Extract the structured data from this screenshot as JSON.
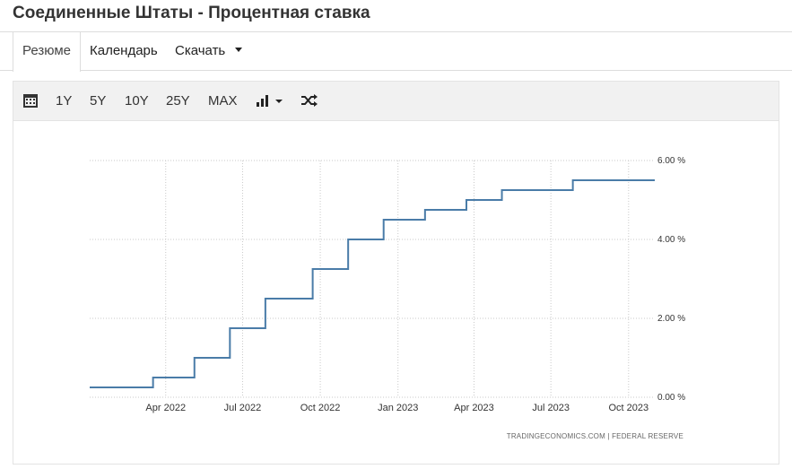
{
  "page": {
    "title": "Соединенные Штаты - Процентная ставка"
  },
  "tabs": [
    {
      "label": "Резюме",
      "active": true
    },
    {
      "label": "Календарь",
      "active": false
    },
    {
      "label": "Скачать",
      "active": false
    }
  ],
  "toolbar": {
    "ranges": [
      "1Y",
      "5Y",
      "10Y",
      "25Y",
      "MAX"
    ],
    "icons": [
      "calendar-icon",
      "bar-chart-icon",
      "shuffle-icon"
    ]
  },
  "chart_data": {
    "type": "line",
    "step": true,
    "color": "#4a7ca8",
    "ylim": [
      0,
      6
    ],
    "y_ticks": [
      0,
      2,
      4,
      6
    ],
    "y_tick_labels": [
      "0.00 %",
      "2.00 %",
      "4.00 %",
      "6.00 %"
    ],
    "x_range": [
      "2022-01-01",
      "2023-11-01"
    ],
    "x_ticks": [
      "2022-04-01",
      "2022-07-01",
      "2022-10-01",
      "2023-01-01",
      "2023-04-01",
      "2023-07-01",
      "2023-10-01"
    ],
    "x_tick_labels": [
      "Apr 2022",
      "Jul 2022",
      "Oct 2022",
      "Jan 2023",
      "Apr 2023",
      "Jul 2023",
      "Oct 2023"
    ],
    "grid": true,
    "series": [
      {
        "dates": [
          "2022-01-01",
          "2022-03-17",
          "2022-05-05",
          "2022-06-16",
          "2022-07-28",
          "2022-09-22",
          "2022-11-03",
          "2022-12-15",
          "2023-02-02",
          "2023-03-23",
          "2023-05-04",
          "2023-07-27",
          "2023-11-01"
        ],
        "values": [
          0.25,
          0.5,
          1.0,
          1.75,
          2.5,
          3.25,
          4.0,
          4.5,
          4.75,
          5.0,
          5.25,
          5.5,
          5.5
        ]
      }
    ],
    "source": "TRADINGECONOMICS.COM  |  FEDERAL RESERVE"
  }
}
